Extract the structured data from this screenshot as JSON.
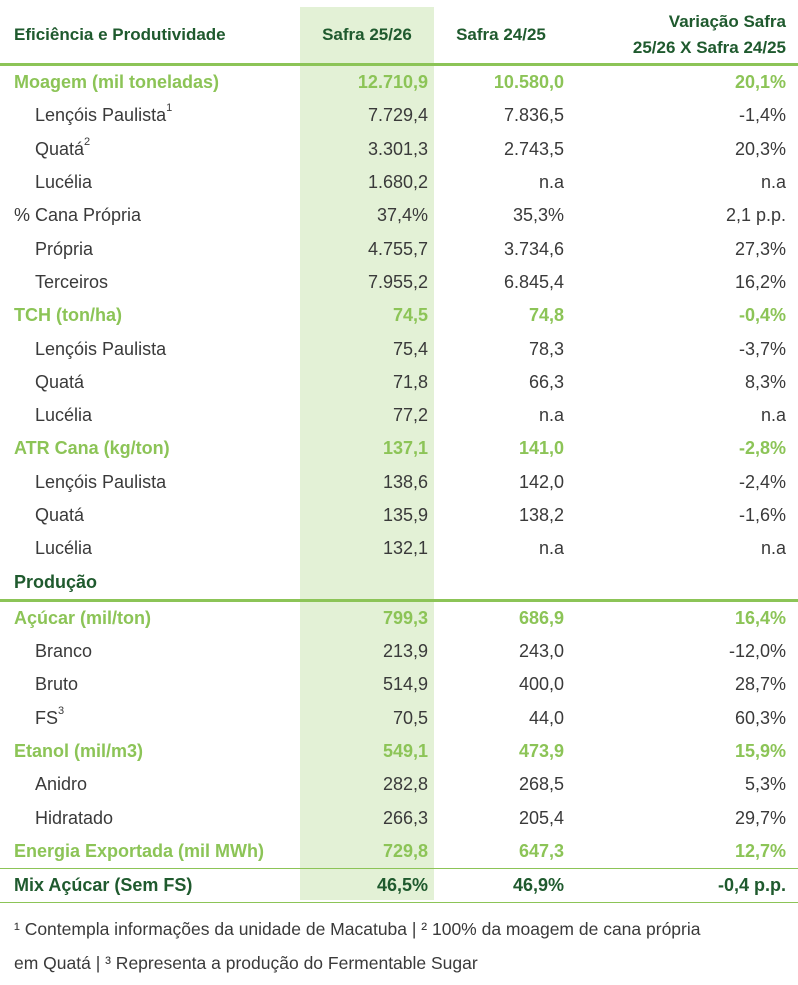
{
  "header": {
    "col1": "Eficiência e Produtividade",
    "col2": "Safra 25/26",
    "col3": "Safra 24/25",
    "col4_line1": "Variação Safra",
    "col4_line2": "25/26 X Safra 24/25"
  },
  "rows": [
    {
      "label": "Moagem (mil toneladas)",
      "sup": "",
      "v1": "12.710,9",
      "v2": "10.580,0",
      "v3": "20,1%"
    },
    {
      "label": "Lençóis Paulista",
      "sup": "1",
      "v1": "7.729,4",
      "v2": "7.836,5",
      "v3": "-1,4%"
    },
    {
      "label": "Quatá",
      "sup": "2",
      "v1": "3.301,3",
      "v2": "2.743,5",
      "v3": "20,3%"
    },
    {
      "label": "Lucélia",
      "sup": "",
      "v1": "1.680,2",
      "v2": "n.a",
      "v3": "n.a"
    },
    {
      "label": "% Cana Própria",
      "sup": "",
      "v1": "37,4%",
      "v2": "35,3%",
      "v3": "2,1 p.p."
    },
    {
      "label": "Própria",
      "sup": "",
      "v1": "4.755,7",
      "v2": "3.734,6",
      "v3": "27,3%"
    },
    {
      "label": "Terceiros",
      "sup": "",
      "v1": "7.955,2",
      "v2": "6.845,4",
      "v3": "16,2%"
    },
    {
      "label": "TCH (ton/ha)",
      "sup": "",
      "v1": "74,5",
      "v2": "74,8",
      "v3": "-0,4%"
    },
    {
      "label": "Lençóis Paulista",
      "sup": "",
      "v1": "75,4",
      "v2": "78,3",
      "v3": "-3,7%"
    },
    {
      "label": "Quatá",
      "sup": "",
      "v1": "71,8",
      "v2": "66,3",
      "v3": "8,3%"
    },
    {
      "label": "Lucélia",
      "sup": "",
      "v1": "77,2",
      "v2": "n.a",
      "v3": "n.a"
    },
    {
      "label": "ATR Cana (kg/ton)",
      "sup": "",
      "v1": "137,1",
      "v2": "141,0",
      "v3": "-2,8%"
    },
    {
      "label": "Lençóis Paulista",
      "sup": "",
      "v1": "138,6",
      "v2": "142,0",
      "v3": "-2,4%"
    },
    {
      "label": "Quatá",
      "sup": "",
      "v1": "135,9",
      "v2": "138,2",
      "v3": "-1,6%"
    },
    {
      "label": "Lucélia",
      "sup": "",
      "v1": "132,1",
      "v2": "n.a",
      "v3": "n.a"
    },
    {
      "label": "Produção",
      "sup": "",
      "v1": "",
      "v2": "",
      "v3": ""
    },
    {
      "label": "Açúcar (mil/ton)",
      "sup": "",
      "v1": "799,3",
      "v2": "686,9",
      "v3": "16,4%"
    },
    {
      "label": "Branco",
      "sup": "",
      "v1": "213,9",
      "v2": "243,0",
      "v3": "-12,0%"
    },
    {
      "label": "Bruto",
      "sup": "",
      "v1": "514,9",
      "v2": "400,0",
      "v3": "28,7%"
    },
    {
      "label": "FS",
      "sup": "3",
      "v1": "70,5",
      "v2": "44,0",
      "v3": "60,3%"
    },
    {
      "label": "Etanol (mil/m3)",
      "sup": "",
      "v1": "549,1",
      "v2": "473,9",
      "v3": "15,9%"
    },
    {
      "label": "Anidro",
      "sup": "",
      "v1": "282,8",
      "v2": "268,5",
      "v3": "5,3%"
    },
    {
      "label": "Hidratado",
      "sup": "",
      "v1": "266,3",
      "v2": "205,4",
      "v3": "29,7%"
    },
    {
      "label": "Energia Exportada (mil MWh)",
      "sup": "",
      "v1": "729,8",
      "v2": "647,3",
      "v3": "12,7%"
    },
    {
      "label": "Mix Açúcar (Sem FS)",
      "sup": "",
      "v1": "46,5%",
      "v2": "46,9%",
      "v3": "-0,4 p.p."
    }
  ],
  "footnote": {
    "line1": "¹ Contempla informações da unidade de Macatuba | ² 100% da moagem de cana própria",
    "line2": "em Quatá | ³ Representa a produção do Fermentable Sugar"
  },
  "colors": {
    "accent_green": "#8cc457",
    "dark_green": "#1f5a2e",
    "highlight_column": "#e3f1d6"
  }
}
